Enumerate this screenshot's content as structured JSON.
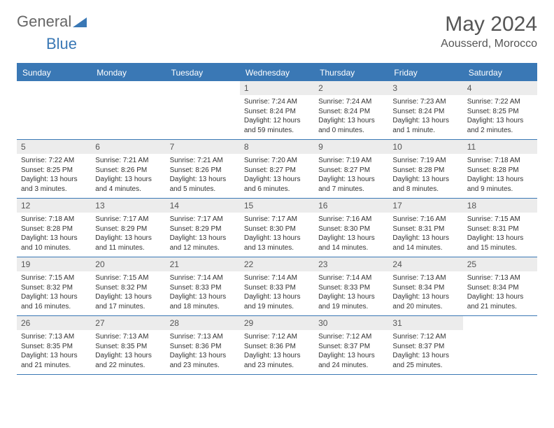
{
  "logo": {
    "text1": "General",
    "text2": "Blue",
    "tri_color": "#3a78b5"
  },
  "title": "May 2024",
  "location": "Aousserd, Morocco",
  "colors": {
    "header_bg": "#3a78b5",
    "header_text": "#ffffff",
    "daynum_bg": "#ececec",
    "border": "#3a78b5",
    "page_bg": "#ffffff",
    "text": "#333333"
  },
  "font": {
    "family": "Arial",
    "title_size": 30,
    "body_size": 10,
    "header_size": 12
  },
  "weekdays": [
    "Sunday",
    "Monday",
    "Tuesday",
    "Wednesday",
    "Thursday",
    "Friday",
    "Saturday"
  ],
  "weeks": [
    [
      null,
      null,
      null,
      {
        "n": "1",
        "sr": "7:24 AM",
        "ss": "8:24 PM",
        "dl": "12 hours and 59 minutes."
      },
      {
        "n": "2",
        "sr": "7:24 AM",
        "ss": "8:24 PM",
        "dl": "13 hours and 0 minutes."
      },
      {
        "n": "3",
        "sr": "7:23 AM",
        "ss": "8:24 PM",
        "dl": "13 hours and 1 minute."
      },
      {
        "n": "4",
        "sr": "7:22 AM",
        "ss": "8:25 PM",
        "dl": "13 hours and 2 minutes."
      }
    ],
    [
      {
        "n": "5",
        "sr": "7:22 AM",
        "ss": "8:25 PM",
        "dl": "13 hours and 3 minutes."
      },
      {
        "n": "6",
        "sr": "7:21 AM",
        "ss": "8:26 PM",
        "dl": "13 hours and 4 minutes."
      },
      {
        "n": "7",
        "sr": "7:21 AM",
        "ss": "8:26 PM",
        "dl": "13 hours and 5 minutes."
      },
      {
        "n": "8",
        "sr": "7:20 AM",
        "ss": "8:27 PM",
        "dl": "13 hours and 6 minutes."
      },
      {
        "n": "9",
        "sr": "7:19 AM",
        "ss": "8:27 PM",
        "dl": "13 hours and 7 minutes."
      },
      {
        "n": "10",
        "sr": "7:19 AM",
        "ss": "8:28 PM",
        "dl": "13 hours and 8 minutes."
      },
      {
        "n": "11",
        "sr": "7:18 AM",
        "ss": "8:28 PM",
        "dl": "13 hours and 9 minutes."
      }
    ],
    [
      {
        "n": "12",
        "sr": "7:18 AM",
        "ss": "8:28 PM",
        "dl": "13 hours and 10 minutes."
      },
      {
        "n": "13",
        "sr": "7:17 AM",
        "ss": "8:29 PM",
        "dl": "13 hours and 11 minutes."
      },
      {
        "n": "14",
        "sr": "7:17 AM",
        "ss": "8:29 PM",
        "dl": "13 hours and 12 minutes."
      },
      {
        "n": "15",
        "sr": "7:17 AM",
        "ss": "8:30 PM",
        "dl": "13 hours and 13 minutes."
      },
      {
        "n": "16",
        "sr": "7:16 AM",
        "ss": "8:30 PM",
        "dl": "13 hours and 14 minutes."
      },
      {
        "n": "17",
        "sr": "7:16 AM",
        "ss": "8:31 PM",
        "dl": "13 hours and 14 minutes."
      },
      {
        "n": "18",
        "sr": "7:15 AM",
        "ss": "8:31 PM",
        "dl": "13 hours and 15 minutes."
      }
    ],
    [
      {
        "n": "19",
        "sr": "7:15 AM",
        "ss": "8:32 PM",
        "dl": "13 hours and 16 minutes."
      },
      {
        "n": "20",
        "sr": "7:15 AM",
        "ss": "8:32 PM",
        "dl": "13 hours and 17 minutes."
      },
      {
        "n": "21",
        "sr": "7:14 AM",
        "ss": "8:33 PM",
        "dl": "13 hours and 18 minutes."
      },
      {
        "n": "22",
        "sr": "7:14 AM",
        "ss": "8:33 PM",
        "dl": "13 hours and 19 minutes."
      },
      {
        "n": "23",
        "sr": "7:14 AM",
        "ss": "8:33 PM",
        "dl": "13 hours and 19 minutes."
      },
      {
        "n": "24",
        "sr": "7:13 AM",
        "ss": "8:34 PM",
        "dl": "13 hours and 20 minutes."
      },
      {
        "n": "25",
        "sr": "7:13 AM",
        "ss": "8:34 PM",
        "dl": "13 hours and 21 minutes."
      }
    ],
    [
      {
        "n": "26",
        "sr": "7:13 AM",
        "ss": "8:35 PM",
        "dl": "13 hours and 21 minutes."
      },
      {
        "n": "27",
        "sr": "7:13 AM",
        "ss": "8:35 PM",
        "dl": "13 hours and 22 minutes."
      },
      {
        "n": "28",
        "sr": "7:13 AM",
        "ss": "8:36 PM",
        "dl": "13 hours and 23 minutes."
      },
      {
        "n": "29",
        "sr": "7:12 AM",
        "ss": "8:36 PM",
        "dl": "13 hours and 23 minutes."
      },
      {
        "n": "30",
        "sr": "7:12 AM",
        "ss": "8:37 PM",
        "dl": "13 hours and 24 minutes."
      },
      {
        "n": "31",
        "sr": "7:12 AM",
        "ss": "8:37 PM",
        "dl": "13 hours and 25 minutes."
      },
      null
    ]
  ],
  "labels": {
    "sunrise": "Sunrise:",
    "sunset": "Sunset:",
    "daylight": "Daylight:"
  }
}
